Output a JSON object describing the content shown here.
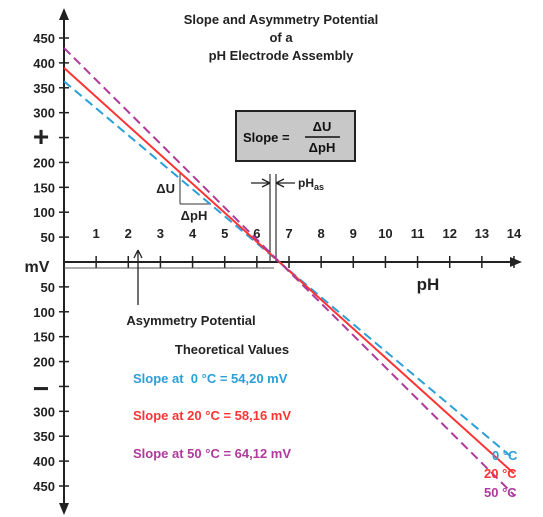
{
  "chart_data": {
    "type": "line",
    "title_lines": [
      "Slope and Asymmetry Potential",
      "of a",
      "pH Electrode Assembly"
    ],
    "xlabel": "pH",
    "ylabel": "mV",
    "xlim": [
      0,
      14
    ],
    "ylim": [
      -450,
      450
    ],
    "x_ticks": [
      1,
      2,
      3,
      4,
      5,
      6,
      7,
      8,
      9,
      10,
      11,
      12,
      13,
      14
    ],
    "y_ticks_positive": [
      50,
      100,
      150,
      200,
      250,
      300,
      350,
      400,
      450
    ],
    "y_tick_labels_positive": [
      "50",
      "100",
      "150",
      "200",
      "",
      "300",
      "350",
      "400",
      "450"
    ],
    "y_ticks_negative": [
      -50,
      -100,
      -150,
      -200,
      -250,
      -300,
      -350,
      -400,
      -450
    ],
    "y_tick_labels_negative": [
      "50",
      "100",
      "150",
      "200",
      "",
      "300",
      "350",
      "400",
      "450"
    ],
    "plus_sign": "+",
    "minus_sign": "−",
    "formula": {
      "lhs": "Slope =",
      "num": "ΔU",
      "den": "ΔpH"
    },
    "delta_u_label": "ΔU",
    "delta_ph_label": "ΔpH",
    "ph_as_label": {
      "main": "pH",
      "sub": "as"
    },
    "ph_as_value": 6.7,
    "asymmetry_label": "Asymmetry Potential",
    "theoretical_heading": "Theoretical Values",
    "series": [
      {
        "name": "0 °C",
        "legend_text": "Slope at  0 °C = 54,20 mV",
        "color": "#2a9fd8",
        "dash": "dashed",
        "x": [
          0,
          14
        ],
        "y": [
          363,
          -396
        ]
      },
      {
        "name": "20 °C",
        "legend_text": "Slope at 20 °C = 58,16 mV",
        "color": "#ff3333",
        "dash": "solid",
        "x": [
          0,
          14
        ],
        "y": [
          390,
          -425
        ]
      },
      {
        "name": "50 °C",
        "legend_text": "Slope at 50 °C = 64,12 mV",
        "color": "#b03a9c",
        "dash": "dashed",
        "x": [
          0,
          14
        ],
        "y": [
          430,
          -468
        ]
      }
    ]
  }
}
